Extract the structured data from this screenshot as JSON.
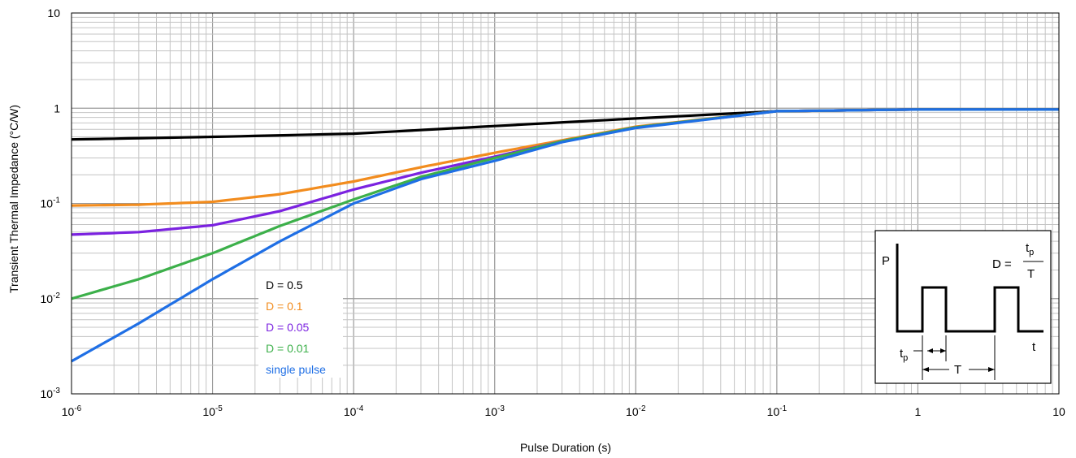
{
  "chart_data": {
    "type": "line",
    "xlabel": "Pulse Duration (s)",
    "ylabel": "Transient Thermal Impedance (°C/W)",
    "xscale": "log",
    "yscale": "log",
    "xlim": [
      1e-06,
      10
    ],
    "ylim": [
      0.001,
      10
    ],
    "grid": true,
    "legend": "lower-left inside plot",
    "x_ticks": [
      {
        "value": 1e-06,
        "base": "10",
        "exp": "-6"
      },
      {
        "value": 1e-05,
        "base": "10",
        "exp": "-5"
      },
      {
        "value": 0.0001,
        "base": "10",
        "exp": "-4"
      },
      {
        "value": 0.001,
        "base": "10",
        "exp": "-3"
      },
      {
        "value": 0.01,
        "base": "10",
        "exp": "-2"
      },
      {
        "value": 0.1,
        "base": "10",
        "exp": "-1"
      },
      {
        "value": 1,
        "base": "1",
        "exp": ""
      },
      {
        "value": 10,
        "base": "10",
        "exp": ""
      }
    ],
    "y_ticks": [
      {
        "value": 10,
        "base": "10",
        "exp": ""
      },
      {
        "value": 1,
        "base": "1",
        "exp": ""
      },
      {
        "value": 0.1,
        "base": "10",
        "exp": "-1"
      },
      {
        "value": 0.01,
        "base": "10",
        "exp": "-2"
      },
      {
        "value": 0.001,
        "base": "10",
        "exp": "-3"
      }
    ],
    "series": [
      {
        "name": "D = 0.5",
        "color": "#000000",
        "x": [
          1e-06,
          1e-05,
          0.0001,
          0.001,
          0.01,
          0.1,
          1,
          10
        ],
        "y": [
          0.47,
          0.5,
          0.54,
          0.65,
          0.78,
          0.93,
          0.97,
          0.97
        ]
      },
      {
        "name": "D = 0.1",
        "color": "#f28c1e",
        "x": [
          1e-06,
          3e-06,
          1e-05,
          3e-05,
          0.0001,
          0.0003,
          0.001,
          0.003,
          0.01,
          0.1,
          1,
          10
        ],
        "y": [
          0.095,
          0.097,
          0.104,
          0.125,
          0.17,
          0.24,
          0.34,
          0.46,
          0.64,
          0.93,
          0.97,
          0.97
        ]
      },
      {
        "name": "D = 0.05",
        "color": "#7b22e0",
        "x": [
          1e-06,
          3e-06,
          1e-05,
          3e-05,
          0.0001,
          0.0003,
          0.001,
          0.003,
          0.01,
          0.1,
          1,
          10
        ],
        "y": [
          0.047,
          0.05,
          0.059,
          0.083,
          0.14,
          0.21,
          0.31,
          0.45,
          0.63,
          0.93,
          0.97,
          0.97
        ]
      },
      {
        "name": "D = 0.01",
        "color": "#3cb04a",
        "x": [
          1e-06,
          3e-06,
          1e-05,
          3e-05,
          0.0001,
          0.0003,
          0.001,
          0.003,
          0.01,
          0.1,
          1,
          10
        ],
        "y": [
          0.01,
          0.016,
          0.03,
          0.058,
          0.11,
          0.19,
          0.3,
          0.45,
          0.63,
          0.93,
          0.97,
          0.97
        ]
      },
      {
        "name": "single pulse",
        "color": "#1f6fe5",
        "x": [
          1e-06,
          3e-06,
          1e-05,
          3e-05,
          0.0001,
          0.0003,
          0.001,
          0.003,
          0.01,
          0.1,
          1,
          10
        ],
        "y": [
          0.0022,
          0.0055,
          0.016,
          0.04,
          0.1,
          0.18,
          0.28,
          0.44,
          0.62,
          0.93,
          0.97,
          0.97
        ]
      }
    ],
    "inset": {
      "p_label": "P",
      "t_label": "t",
      "tp_base": "t",
      "tp_sub": "p",
      "T_label": "T",
      "formula_lhs": "D =",
      "formula_num_base": "t",
      "formula_num_sub": "p",
      "formula_den": "T"
    }
  }
}
